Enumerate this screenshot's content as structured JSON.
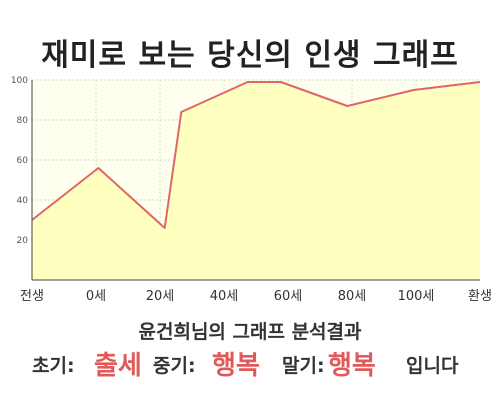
{
  "title": "재미로 보는 당신의 인생 그래프",
  "caption": "윤건희님의 그래프 분석결과",
  "summary": {
    "early_label": "초기:",
    "early_value": "출세",
    "mid_label": "중기:",
    "mid_value": "행복",
    "late_label": "말기:",
    "late_value": "행복",
    "ending": "입니다"
  },
  "colors": {
    "line": "#e06666",
    "fill": "#ffffc0",
    "plot_background": "#fffff0",
    "grid": "#d8d8c8",
    "highlight": "#e05a5a"
  },
  "chart_data": {
    "type": "area",
    "title": "재미로 보는 당신의 인생 그래프",
    "xlabel": "",
    "ylabel": "",
    "x_ticks": [
      "전생",
      "0세",
      "20세",
      "40세",
      "60세",
      "80세",
      "100세",
      "환생"
    ],
    "x": [
      -20,
      0,
      20,
      25,
      45,
      55,
      75,
      95,
      115
    ],
    "values": [
      30,
      56,
      26,
      84,
      99,
      99,
      87,
      95,
      99
    ],
    "x_range": [
      -20,
      115
    ],
    "ylim": [
      0,
      100
    ],
    "y_ticks": [
      20,
      40,
      60,
      80,
      100
    ],
    "grid": true,
    "legend": "none"
  }
}
